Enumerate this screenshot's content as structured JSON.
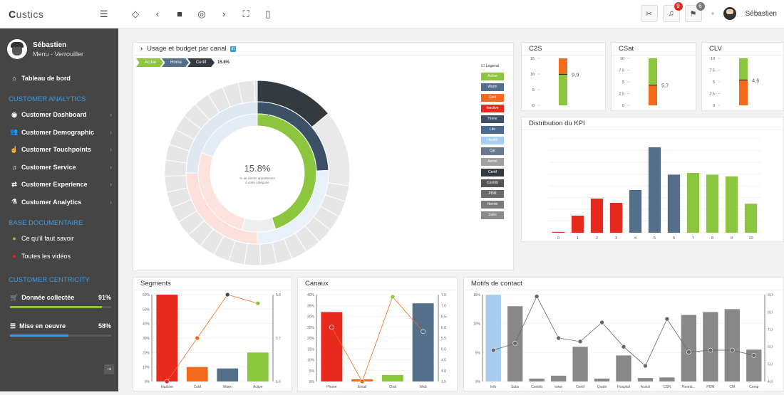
{
  "topbar": {
    "brand_first": "C",
    "brand_rest": "ustics",
    "notif_count": "9",
    "tasks_count": "6",
    "user_name": "Sébastien"
  },
  "sidebar": {
    "name": "Sébastien",
    "status": "Menu - Verrouiller",
    "home_label": "Tableau de bord",
    "section1": "CUSTOMER ANALYTICS",
    "analytics_items": [
      {
        "label": "Customer Dashboard",
        "icon": "dashboard-icon"
      },
      {
        "label": "Customer Demographic",
        "icon": "users-icon"
      },
      {
        "label": "Customer Touchpoints",
        "icon": "touch-icon"
      },
      {
        "label": "Customer Service",
        "icon": "headset-icon"
      },
      {
        "label": "Customer Experience",
        "icon": "shuffle-icon"
      },
      {
        "label": "Customer Analytics",
        "icon": "flask-icon"
      }
    ],
    "section2": "BASE DOCUMENTAIRE",
    "doc_items": [
      {
        "label": "Ce qu'il faut savoir",
        "color": "#8cc63f"
      },
      {
        "label": "Toutes les vidéos",
        "color": "#e8291e"
      }
    ],
    "section3": "CUSTOMER CENTRICITY",
    "kpis": [
      {
        "label": "Donnée collectée",
        "value": "91%",
        "fraction": 0.91,
        "color": "#8cc63f"
      },
      {
        "label": "Mise en oeuvre",
        "value": "58%",
        "fraction": 0.58,
        "color": "#3f9be0"
      }
    ]
  },
  "usage": {
    "title": "Usage et budget par canal",
    "crumbs": [
      "Active",
      "Home",
      "Certif"
    ],
    "crumb_value": "15.8%",
    "center_value": "15.8%",
    "center_line1": "% de clients appartenant",
    "center_line2": "à cette catégorie",
    "legend_title": "Legend",
    "legend": [
      {
        "label": "Active",
        "color": "#8cc63f"
      },
      {
        "label": "Warm",
        "color": "#536f89"
      },
      {
        "label": "Cold",
        "color": "#f26b1d"
      },
      {
        "label": "Inactive",
        "color": "#e8291e"
      },
      {
        "label": "Home",
        "color": "#3d5166"
      },
      {
        "label": "Life",
        "color": "#4a6a92"
      },
      {
        "label": "Health",
        "color": "#a8cdf0"
      },
      {
        "label": "Car",
        "color": "#6a7a8c"
      },
      {
        "label": "Assist",
        "color": "#a0a0a0"
      },
      {
        "label": "Certif",
        "color": "#333a40"
      },
      {
        "label": "Contrib",
        "color": "#555555"
      },
      {
        "label": "PDM",
        "color": "#6b6b6b"
      },
      {
        "label": "Reimb",
        "color": "#7a7a7a"
      },
      {
        "label": "Subs",
        "color": "#8a8a8a"
      }
    ]
  },
  "c2s": {
    "title": "C2S",
    "ticks": [
      "15",
      "10",
      "5",
      "0"
    ],
    "value_label": "9,9",
    "green_fraction": 0.66,
    "orange_fraction": 0.34
  },
  "csat": {
    "title": "CSat",
    "ticks": [
      "10",
      "7.5",
      "5",
      "2.5",
      "0"
    ],
    "value_label": "5,7",
    "green_fraction": 0.57,
    "orange_fraction": 0.43
  },
  "clv": {
    "title": "CLV",
    "ticks": [
      "10",
      "7.5",
      "5",
      "2.5",
      "0"
    ],
    "value_label": "4,6",
    "green_fraction": 0.46,
    "orange_fraction": 0.54
  },
  "kpi_dist": {
    "title": "Distribution du KPI",
    "chart_data": {
      "type": "bar",
      "categories": [
        "0",
        "1",
        "2",
        "3",
        "4",
        "5",
        "6",
        "7",
        "8",
        "9",
        "10"
      ],
      "values": [
        1,
        20,
        40,
        35,
        50,
        100,
        68,
        70,
        68,
        66,
        34
      ],
      "colors": [
        "#e8291e",
        "#e8291e",
        "#e8291e",
        "#e8291e",
        "#536f89",
        "#536f89",
        "#536f89",
        "#8cc63f",
        "#8cc63f",
        "#8cc63f",
        "#8cc63f"
      ]
    }
  },
  "segments": {
    "title": "Segments",
    "chart_data": {
      "type": "bar",
      "categories": [
        "Inactive",
        "Cold",
        "Warm",
        "Active"
      ],
      "left_ticks": [
        "60%",
        "50%",
        "40%",
        "30%",
        "20%",
        "10%",
        "0%"
      ],
      "right_ticks": [
        "5.8",
        "5.7",
        "5.6"
      ],
      "values": [
        60,
        10,
        9,
        20
      ],
      "colors": [
        "#e8291e",
        "#f26b1d",
        "#536f89",
        "#8cc63f"
      ],
      "line": [
        5.6,
        5.7,
        5.8,
        5.78
      ]
    }
  },
  "canaux": {
    "title": "Canaux",
    "chart_data": {
      "type": "bar",
      "categories": [
        "Phone",
        "Email",
        "Chat",
        "Web"
      ],
      "left_ticks": [
        "40%",
        "35%",
        "30%",
        "25%",
        "20%",
        "15%",
        "10%",
        "5%",
        "0%"
      ],
      "right_ticks": [
        "7.5",
        "7.0",
        "6.5",
        "6.0",
        "5.5",
        "5.0",
        "4.5",
        "4.0",
        "3.5"
      ],
      "values": [
        32,
        1,
        3,
        36
      ],
      "colors": [
        "#e8291e",
        "#f26b1d",
        "#8cc63f",
        "#536f89"
      ],
      "line": [
        6.0,
        3.5,
        7.4,
        5.8
      ]
    }
  },
  "motifs": {
    "title": "Motifs de contact",
    "chart_data": {
      "type": "bar",
      "categories": [
        "Info",
        "Subs",
        "Contrib",
        "www",
        "Certif",
        "Quote",
        "Hospital",
        "Assist",
        "CSR",
        "Reimb...",
        "PDM",
        "CM",
        "Comp"
      ],
      "left_ticks": [
        "15%",
        "10%",
        "5%",
        "0%"
      ],
      "right_ticks": [
        "9,0",
        "8,0",
        "7,0",
        "6,0",
        "5,0",
        "4,0"
      ],
      "values": [
        15,
        13,
        0.5,
        1,
        6,
        0.5,
        4.5,
        0.6,
        0.7,
        11.5,
        12,
        12.5,
        5.5
      ],
      "colors": [
        "#a8cdf0",
        "#888888",
        "#888888",
        "#888888",
        "#888888",
        "#888888",
        "#888888",
        "#888888",
        "#888888",
        "#888888",
        "#888888",
        "#888888",
        "#888888"
      ],
      "line": [
        5.8,
        6.2,
        8.9,
        6.5,
        6.3,
        7.4,
        6.0,
        4.9,
        7.6,
        5.7,
        5.8,
        5.8,
        5.5
      ]
    }
  }
}
